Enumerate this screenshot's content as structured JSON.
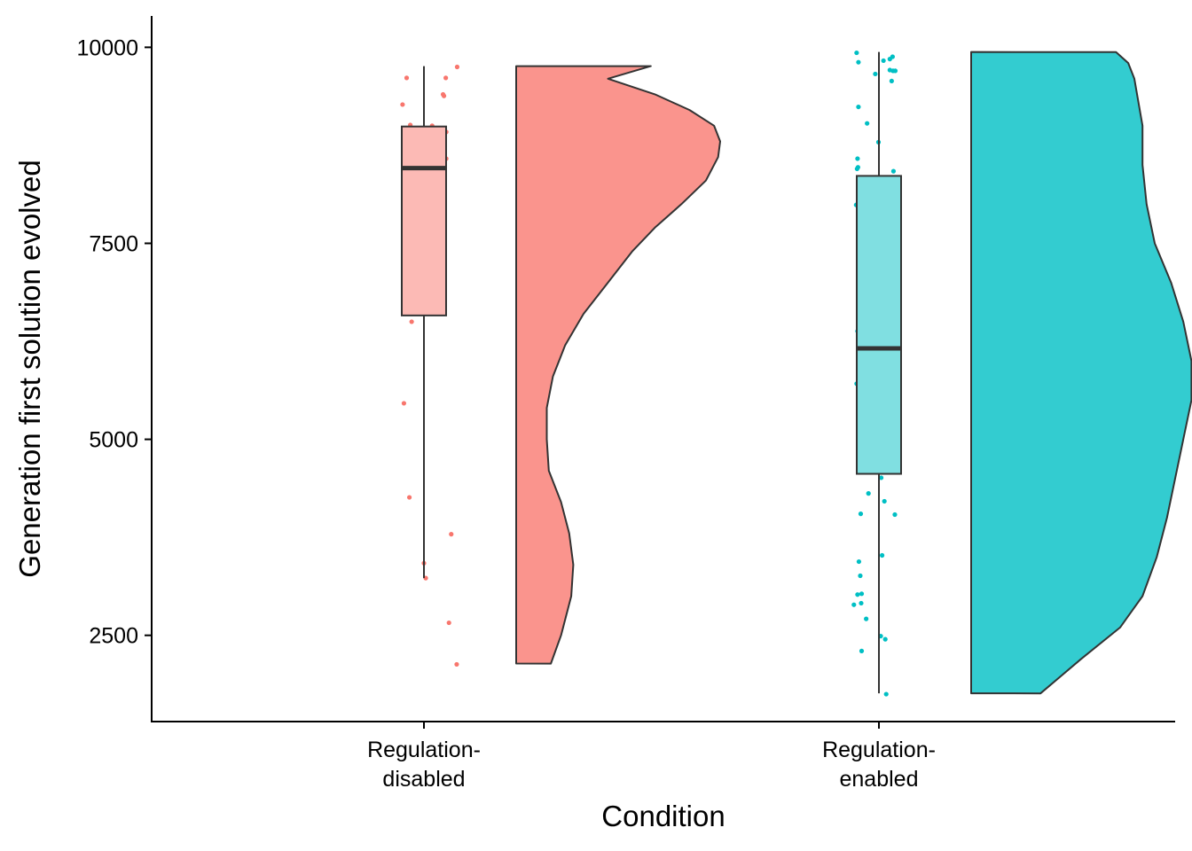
{
  "chart_data": {
    "type": "raincloud",
    "title": "",
    "xlabel": "Condition",
    "ylabel": "Generation first solution evolved",
    "ylim": [
      1400,
      10400
    ],
    "yticks": [
      2500,
      5000,
      7500,
      10000
    ],
    "categories": [
      {
        "lines": [
          "Regulation-",
          "disabled"
        ]
      },
      {
        "lines": [
          "Regulation-",
          "enabled"
        ]
      }
    ],
    "grid": false,
    "legend": "none",
    "series": [
      {
        "color_fill": "#F8766D",
        "color_box": "#fcbab5",
        "box": {
          "min": 3230,
          "q1": 6580,
          "median": 8460,
          "q3": 8990,
          "max": 9760
        },
        "violin": {
          "y": [
            2140,
            2500,
            3000,
            3400,
            3800,
            4200,
            4600,
            5000,
            5400,
            5800,
            6200,
            6600,
            7000,
            7400,
            7700,
            8000,
            8300,
            8600,
            8800,
            9000,
            9200,
            9400,
            9600,
            9760
          ],
          "width": [
            0.17,
            0.22,
            0.27,
            0.28,
            0.26,
            0.22,
            0.16,
            0.15,
            0.15,
            0.18,
            0.24,
            0.33,
            0.45,
            0.57,
            0.68,
            0.81,
            0.93,
            0.99,
            1.0,
            0.97,
            0.85,
            0.68,
            0.45,
            0.66
          ]
        },
        "points": [
          [
            0.962,
            9610
          ],
          [
            0.953,
            9270
          ],
          [
            0.96,
            8840
          ],
          [
            0.969,
            8520
          ],
          [
            0.959,
            8370
          ],
          [
            0.956,
            5460
          ],
          [
            0.965,
            7010
          ],
          [
            0.968,
            4260
          ],
          [
            0.97,
            9010
          ],
          [
            0.973,
            6500
          ],
          [
            0.986,
            7600
          ],
          [
            0.991,
            8600
          ],
          [
            0.998,
            7530
          ],
          [
            1.009,
            6810
          ],
          [
            1.0,
            3420
          ],
          [
            1.004,
            3230
          ],
          [
            1.018,
            9000
          ],
          [
            1.042,
            9400
          ],
          [
            1.044,
            9380
          ],
          [
            1.048,
            9610
          ],
          [
            1.049,
            8920
          ],
          [
            1.041,
            8760
          ],
          [
            1.044,
            8680
          ],
          [
            1.049,
            8580
          ],
          [
            1.03,
            8130
          ],
          [
            1.042,
            8050
          ],
          [
            1.073,
            9750
          ],
          [
            1.06,
            3790
          ],
          [
            1.055,
            2660
          ],
          [
            1.072,
            2130
          ]
        ]
      },
      {
        "color_fill": "#00BFC4",
        "color_box": "#80dfe1",
        "box": {
          "min": 1760,
          "q1": 4560,
          "median": 6160,
          "q3": 8360,
          "max": 9940
        },
        "violin": {
          "y": [
            1760,
            2200,
            2600,
            3000,
            3500,
            4000,
            4500,
            5000,
            5500,
            6000,
            6500,
            7000,
            7500,
            8000,
            8500,
            9000,
            9300,
            9600,
            9800,
            9940
          ],
          "width": [
            0.34,
            0.54,
            0.73,
            0.84,
            0.91,
            0.96,
            1.0,
            1.04,
            1.08,
            1.08,
            1.04,
            0.98,
            0.9,
            0.86,
            0.84,
            0.84,
            0.82,
            0.8,
            0.77,
            0.71
          ]
        },
        "points": [
          [
            0.951,
            9930
          ],
          [
            0.955,
            9810
          ],
          [
            0.955,
            9240
          ],
          [
            0.953,
            8580
          ],
          [
            0.952,
            8450
          ],
          [
            0.954,
            8470
          ],
          [
            0.95,
            7990
          ],
          [
            0.959,
            7210
          ],
          [
            0.957,
            6810
          ],
          [
            0.953,
            6380
          ],
          [
            0.956,
            6160
          ],
          [
            0.96,
            6140
          ],
          [
            0.957,
            5970
          ],
          [
            0.961,
            5930
          ],
          [
            0.962,
            5710
          ],
          [
            0.951,
            5710
          ],
          [
            0.96,
            5690
          ],
          [
            0.96,
            4050
          ],
          [
            0.956,
            3440
          ],
          [
            0.959,
            3260
          ],
          [
            0.962,
            3030
          ],
          [
            0.953,
            3020
          ],
          [
            0.961,
            2910
          ],
          [
            0.945,
            2890
          ],
          [
            0.972,
            2710
          ],
          [
            0.962,
            2300
          ],
          [
            0.963,
            7730
          ],
          [
            0.958,
            6900
          ],
          [
            0.969,
            6290
          ],
          [
            0.965,
            5740
          ],
          [
            0.965,
            4900
          ],
          [
            0.96,
            4780
          ],
          [
            0.992,
            9660
          ],
          [
            0.974,
            9030
          ],
          [
            0.999,
            8790
          ],
          [
            1.003,
            8150
          ],
          [
            0.981,
            5420
          ],
          [
            0.977,
            4310
          ],
          [
            1.0,
            5580
          ],
          [
            1.0,
            4720
          ],
          [
            1.002,
            4700
          ],
          [
            1.005,
            4510
          ],
          [
            1.007,
            3520
          ],
          [
            1.004,
            2490
          ],
          [
            1.024,
            9850
          ],
          [
            1.01,
            9830
          ],
          [
            1.024,
            9710
          ],
          [
            1.031,
            9700
          ],
          [
            1.028,
            9570
          ],
          [
            1.03,
            9880
          ],
          [
            1.036,
            9700
          ],
          [
            1.032,
            8420
          ],
          [
            1.013,
            7610
          ],
          [
            1.035,
            7300
          ],
          [
            1.042,
            6980
          ],
          [
            1.013,
            6900
          ],
          [
            1.036,
            6610
          ],
          [
            1.027,
            6570
          ],
          [
            1.032,
            5540
          ],
          [
            1.016,
            5000
          ],
          [
            1.022,
            4840
          ],
          [
            1.026,
            4710
          ],
          [
            1.035,
            4040
          ],
          [
            1.012,
            4210
          ],
          [
            1.014,
            2450
          ],
          [
            1.016,
            1750
          ]
        ]
      }
    ]
  }
}
